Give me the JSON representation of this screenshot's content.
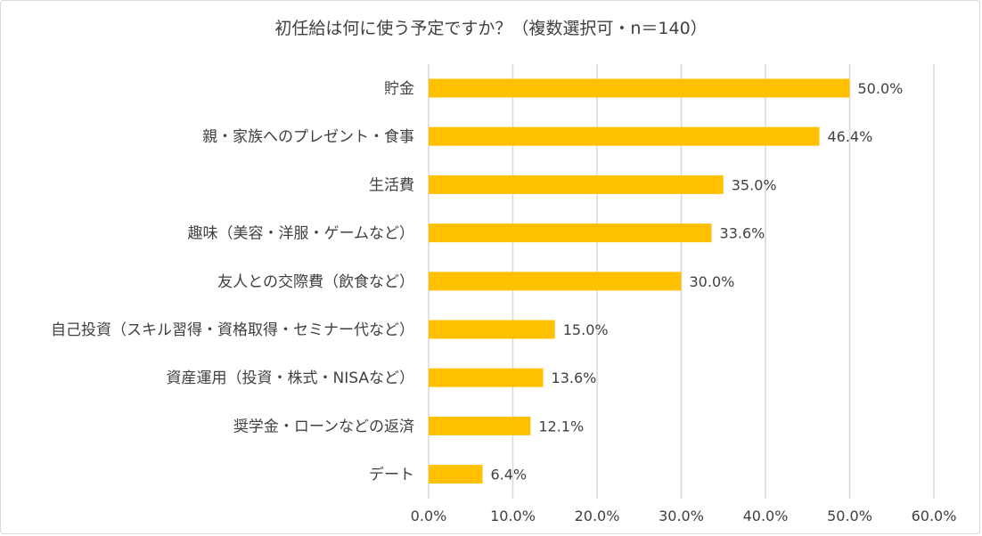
{
  "chart_data": {
    "type": "bar",
    "orientation": "horizontal",
    "title": "初任給は何に使う予定ですか？（複数選択可・n＝140）",
    "categories": [
      "貯金",
      "親・家族へのプレゼント・食事",
      "生活費",
      "趣味（美容・洋服・ゲームなど）",
      "友人との交際費（飲食など）",
      "自己投資（スキル習得・資格取得・セミナー代など）",
      "資産運用（投資・株式・NISAなど）",
      "奨学金・ローンなどの返済",
      "デート"
    ],
    "values": [
      50.0,
      46.4,
      35.0,
      33.6,
      30.0,
      15.0,
      13.6,
      12.1,
      6.4
    ],
    "value_labels": [
      "50.0%",
      "46.4%",
      "35.0%",
      "33.6%",
      "30.0%",
      "15.0%",
      "13.6%",
      "12.1%",
      "6.4%"
    ],
    "xlim": [
      0,
      60
    ],
    "x_ticks": [
      "0.0%",
      "10.0%",
      "20.0%",
      "30.0%",
      "40.0%",
      "50.0%",
      "60.0%"
    ],
    "grid": true,
    "legend": "none",
    "colors": {
      "bar": "#FFC000",
      "grid": "#d9d9d9",
      "text": "#404040"
    }
  }
}
